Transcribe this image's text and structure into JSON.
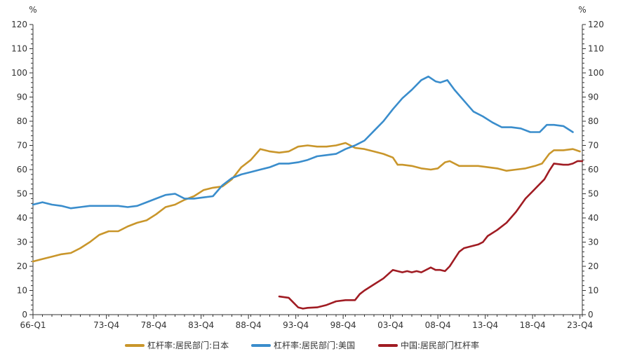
{
  "chart_data": {
    "type": "line",
    "left_unit": "%",
    "right_unit": "%",
    "ylim": [
      0,
      120
    ],
    "yticks": [
      0,
      10,
      20,
      30,
      40,
      50,
      60,
      70,
      80,
      90,
      100,
      110,
      120
    ],
    "xlim": [
      1966.0,
      2024.0
    ],
    "x_tick_labels": [
      {
        "x": 1966.0,
        "label": "66-Q1"
      },
      {
        "x": 1973.75,
        "label": "73-Q4"
      },
      {
        "x": 1978.75,
        "label": "78-Q4"
      },
      {
        "x": 1983.75,
        "label": "83-Q4"
      },
      {
        "x": 1988.75,
        "label": "88-Q4"
      },
      {
        "x": 1993.75,
        "label": "93-Q4"
      },
      {
        "x": 1998.75,
        "label": "98-Q4"
      },
      {
        "x": 2003.75,
        "label": "03-Q4"
      },
      {
        "x": 2008.75,
        "label": "08-Q4"
      },
      {
        "x": 2013.75,
        "label": "13-Q4"
      },
      {
        "x": 2018.75,
        "label": "18-Q4"
      },
      {
        "x": 2023.75,
        "label": "23-Q4"
      }
    ],
    "legend_position": "bottom",
    "grid": false,
    "series": [
      {
        "name": "杠杆率:居民部门:日本",
        "color": "#C9962B",
        "points": [
          [
            1966.0,
            22
          ],
          [
            1967.0,
            23
          ],
          [
            1968.0,
            24
          ],
          [
            1969.0,
            25
          ],
          [
            1970.0,
            25.5
          ],
          [
            1971.0,
            27.5
          ],
          [
            1972.0,
            30
          ],
          [
            1973.0,
            33
          ],
          [
            1974.0,
            34.5
          ],
          [
            1975.0,
            34.5
          ],
          [
            1976.0,
            36.5
          ],
          [
            1977.0,
            38
          ],
          [
            1978.0,
            39
          ],
          [
            1979.0,
            41.5
          ],
          [
            1980.0,
            44.5
          ],
          [
            1981.0,
            45.5
          ],
          [
            1982.0,
            47.5
          ],
          [
            1983.0,
            49
          ],
          [
            1984.0,
            51.5
          ],
          [
            1985.0,
            52.5
          ],
          [
            1986.0,
            53
          ],
          [
            1987.0,
            56
          ],
          [
            1988.0,
            61
          ],
          [
            1989.0,
            64
          ],
          [
            1990.0,
            68.5
          ],
          [
            1991.0,
            67.5
          ],
          [
            1992.0,
            67
          ],
          [
            1993.0,
            67.5
          ],
          [
            1994.0,
            69.5
          ],
          [
            1995.0,
            70
          ],
          [
            1996.0,
            69.5
          ],
          [
            1997.0,
            69.5
          ],
          [
            1998.0,
            70
          ],
          [
            1999.0,
            71
          ],
          [
            2000.0,
            69
          ],
          [
            2001.0,
            68.5
          ],
          [
            2002.0,
            67.5
          ],
          [
            2003.0,
            66.5
          ],
          [
            2004.0,
            65
          ],
          [
            2004.5,
            62
          ],
          [
            2005.0,
            62
          ],
          [
            2006.0,
            61.5
          ],
          [
            2007.0,
            60.5
          ],
          [
            2008.0,
            60
          ],
          [
            2008.75,
            60.5
          ],
          [
            2009.5,
            63
          ],
          [
            2010.0,
            63.5
          ],
          [
            2011.0,
            61.5
          ],
          [
            2012.0,
            61.5
          ],
          [
            2013.0,
            61.5
          ],
          [
            2014.0,
            61
          ],
          [
            2015.0,
            60.5
          ],
          [
            2016.0,
            59.5
          ],
          [
            2017.0,
            60
          ],
          [
            2018.0,
            60.5
          ],
          [
            2019.0,
            61.5
          ],
          [
            2019.75,
            62.5
          ],
          [
            2020.5,
            66.5
          ],
          [
            2021.0,
            68
          ],
          [
            2022.0,
            68
          ],
          [
            2023.0,
            68.5
          ],
          [
            2023.75,
            67.5
          ]
        ]
      },
      {
        "name": "杠杆率:居民部门:美国",
        "color": "#3A8DCC",
        "points": [
          [
            1966.0,
            45.5
          ],
          [
            1967.0,
            46.5
          ],
          [
            1968.0,
            45.5
          ],
          [
            1969.0,
            45
          ],
          [
            1970.0,
            44
          ],
          [
            1971.0,
            44.5
          ],
          [
            1972.0,
            45
          ],
          [
            1973.0,
            45
          ],
          [
            1975.0,
            45
          ],
          [
            1976.0,
            44.5
          ],
          [
            1977.0,
            45
          ],
          [
            1978.0,
            46.5
          ],
          [
            1979.0,
            48
          ],
          [
            1980.0,
            49.5
          ],
          [
            1981.0,
            50
          ],
          [
            1982.0,
            48
          ],
          [
            1983.0,
            48
          ],
          [
            1984.0,
            48.5
          ],
          [
            1985.0,
            49
          ],
          [
            1986.0,
            53.5
          ],
          [
            1987.0,
            56.5
          ],
          [
            1988.0,
            58
          ],
          [
            1989.0,
            59
          ],
          [
            1990.0,
            60
          ],
          [
            1991.0,
            61
          ],
          [
            1992.0,
            62.5
          ],
          [
            1993.0,
            62.5
          ],
          [
            1994.0,
            63
          ],
          [
            1995.0,
            64
          ],
          [
            1996.0,
            65.5
          ],
          [
            1997.0,
            66
          ],
          [
            1998.0,
            66.5
          ],
          [
            1999.0,
            68.5
          ],
          [
            2000.0,
            70
          ],
          [
            2001.0,
            72
          ],
          [
            2002.0,
            76
          ],
          [
            2003.0,
            80
          ],
          [
            2004.0,
            85
          ],
          [
            2005.0,
            89.5
          ],
          [
            2006.0,
            93
          ],
          [
            2007.0,
            97
          ],
          [
            2007.75,
            98.5
          ],
          [
            2008.5,
            96.5
          ],
          [
            2009.0,
            96
          ],
          [
            2009.75,
            97
          ],
          [
            2010.5,
            93
          ],
          [
            2011.5,
            88.5
          ],
          [
            2012.5,
            84
          ],
          [
            2013.5,
            82
          ],
          [
            2014.5,
            79.5
          ],
          [
            2015.5,
            77.5
          ],
          [
            2016.5,
            77.5
          ],
          [
            2017.5,
            77
          ],
          [
            2018.5,
            75.5
          ],
          [
            2019.5,
            75.5
          ],
          [
            2020.25,
            78.5
          ],
          [
            2021.0,
            78.5
          ],
          [
            2022.0,
            78
          ],
          [
            2023.0,
            75.5
          ]
        ]
      },
      {
        "name": "中国:居民部门杠杆率",
        "color": "#A01C23",
        "points": [
          [
            1992.0,
            7.5
          ],
          [
            1993.0,
            7
          ],
          [
            1993.5,
            5
          ],
          [
            1994.0,
            3
          ],
          [
            1994.5,
            2.5
          ],
          [
            1995.0,
            2.8
          ],
          [
            1996.0,
            3
          ],
          [
            1997.0,
            4
          ],
          [
            1998.0,
            5.5
          ],
          [
            1999.0,
            6
          ],
          [
            2000.0,
            6
          ],
          [
            2000.5,
            8.5
          ],
          [
            2001.0,
            10
          ],
          [
            2002.0,
            12.5
          ],
          [
            2003.0,
            15
          ],
          [
            2004.0,
            18.5
          ],
          [
            2005.0,
            17.5
          ],
          [
            2005.5,
            18
          ],
          [
            2006.0,
            17.5
          ],
          [
            2006.5,
            18
          ],
          [
            2007.0,
            17.5
          ],
          [
            2008.0,
            19.5
          ],
          [
            2008.5,
            18.5
          ],
          [
            2009.0,
            18.5
          ],
          [
            2009.5,
            18
          ],
          [
            2010.0,
            20
          ],
          [
            2010.5,
            23
          ],
          [
            2011.0,
            26
          ],
          [
            2011.5,
            27.5
          ],
          [
            2012.0,
            28
          ],
          [
            2013.0,
            29
          ],
          [
            2013.5,
            30
          ],
          [
            2014.0,
            32.5
          ],
          [
            2015.0,
            35
          ],
          [
            2016.0,
            38
          ],
          [
            2017.0,
            42.5
          ],
          [
            2018.0,
            48
          ],
          [
            2019.0,
            52
          ],
          [
            2020.0,
            56
          ],
          [
            2020.5,
            59.5
          ],
          [
            2021.0,
            62.5
          ],
          [
            2022.0,
            62
          ],
          [
            2022.5,
            62
          ],
          [
            2023.0,
            62.5
          ],
          [
            2023.5,
            63.5
          ],
          [
            2024.0,
            63.5
          ]
        ]
      }
    ]
  }
}
